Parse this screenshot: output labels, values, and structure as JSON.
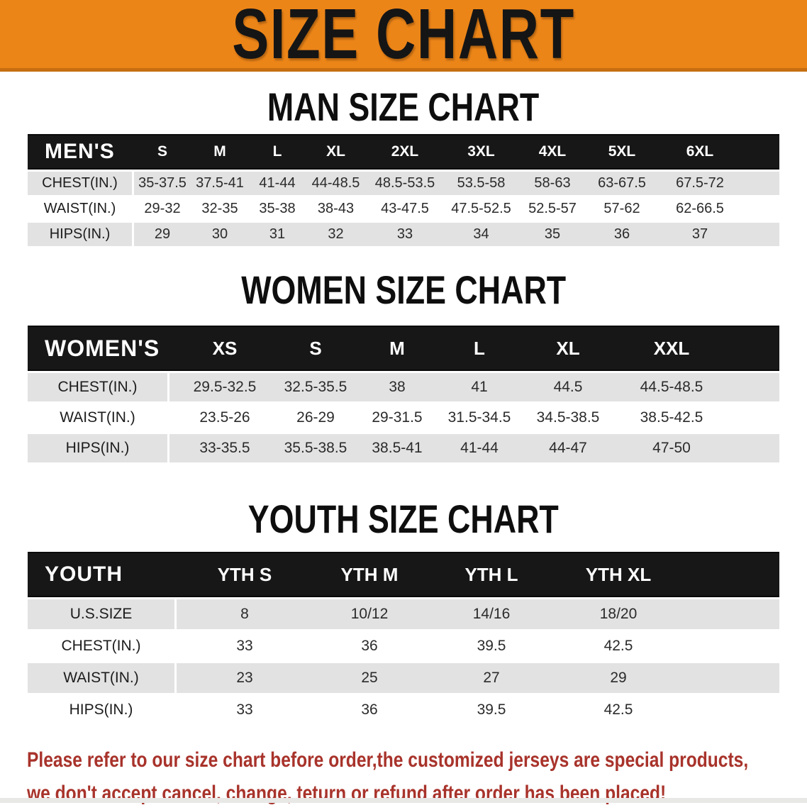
{
  "banner": {
    "title": "SIZE CHART"
  },
  "sections": [
    {
      "id": "men",
      "heading": "MAN SIZE CHART",
      "corner_label": "MEN'S",
      "columns": [
        "S",
        "M",
        "L",
        "XL",
        "2XL",
        "3XL",
        "4XL",
        "5XL",
        "6XL"
      ],
      "rows": [
        {
          "label": "CHEST(IN.)",
          "values": [
            "35-37.5",
            "37.5-41",
            "41-44",
            "44-48.5",
            "48.5-53.5",
            "53.5-58",
            "58-63",
            "63-67.5",
            "67.5-72"
          ]
        },
        {
          "label": "WAIST(IN.)",
          "values": [
            "29-32",
            "32-35",
            "35-38",
            "38-43",
            "43-47.5",
            "47.5-52.5",
            "52.5-57",
            "57-62",
            "62-66.5"
          ]
        },
        {
          "label": "HIPS(IN.)",
          "values": [
            "29",
            "30",
            "31",
            "32",
            "33",
            "34",
            "35",
            "36",
            "37"
          ]
        }
      ]
    },
    {
      "id": "women",
      "heading": "WOMEN SIZE CHART",
      "corner_label": "WOMEN'S",
      "columns": [
        "XS",
        "S",
        "M",
        "L",
        "XL",
        "XXL"
      ],
      "rows": [
        {
          "label": "CHEST(IN.)",
          "values": [
            "29.5-32.5",
            "32.5-35.5",
            "38",
            "41",
            "44.5",
            "44.5-48.5"
          ]
        },
        {
          "label": "WAIST(IN.)",
          "values": [
            "23.5-26",
            "26-29",
            "29-31.5",
            "31.5-34.5",
            "34.5-38.5",
            "38.5-42.5"
          ]
        },
        {
          "label": "HIPS(IN.)",
          "values": [
            "33-35.5",
            "35.5-38.5",
            "38.5-41",
            "41-44",
            "44-47",
            "47-50"
          ]
        }
      ]
    },
    {
      "id": "youth",
      "heading": "YOUTH SIZE CHART",
      "corner_label": "YOUTH",
      "columns": [
        "YTH S",
        "YTH M",
        "YTH L",
        "YTH XL"
      ],
      "rows": [
        {
          "label": "U.S.SIZE",
          "values": [
            "8",
            "10/12",
            "14/16",
            "18/20"
          ]
        },
        {
          "label": "CHEST(IN.)",
          "values": [
            "33",
            "36",
            "39.5",
            "42.5"
          ]
        },
        {
          "label": "WAIST(IN.)",
          "values": [
            "23",
            "25",
            "27",
            "29"
          ]
        },
        {
          "label": "HIPS(IN.)",
          "values": [
            "33",
            "36",
            "39.5",
            "42.5"
          ]
        }
      ]
    }
  ],
  "footer_note": {
    "lines": [
      "Please refer to our size chart before order,the customized jerseys are special products,",
      "we don't accept cancel, change, teturn or refund after order has been placed!"
    ]
  },
  "colors": {
    "banner_orange": "#EC8518",
    "banner_border": "#C76E10",
    "header_black": "#171717",
    "row_gray": "#E2E2E2",
    "row_white": "#FFFFFF",
    "note_red": "#A8332B"
  }
}
